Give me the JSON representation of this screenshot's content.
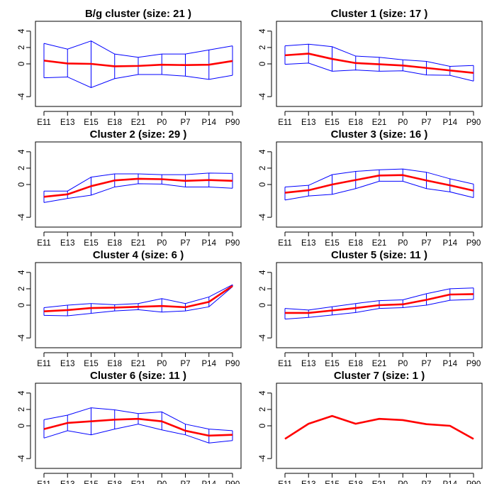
{
  "x_tick_labels": [
    "E11",
    "E13",
    "E15",
    "E18",
    "E21",
    "P0",
    "P7",
    "P14",
    "P90"
  ],
  "y_tick_labels": [
    "4",
    "2",
    "0",
    "-4"
  ],
  "colors": {
    "mean_line": "#ff0000",
    "envelope": "#0000ff",
    "axis": "#000000"
  },
  "chart_data": [
    {
      "type": "line",
      "title": "B/g cluster  (size:  21 )",
      "ylim": [
        -5.2,
        5.2
      ],
      "mean": [
        0.4,
        0.05,
        0.0,
        -0.3,
        -0.25,
        -0.1,
        -0.15,
        -0.1,
        0.35
      ],
      "upper": [
        2.5,
        1.8,
        2.8,
        1.2,
        0.8,
        1.2,
        1.2,
        1.7,
        2.2
      ],
      "lower": [
        -1.7,
        -1.6,
        -2.9,
        -1.8,
        -1.3,
        -1.3,
        -1.5,
        -1.9,
        -1.4
      ]
    },
    {
      "type": "line",
      "title": "Cluster  1 (size:  17 )",
      "ylim": [
        -5.2,
        5.2
      ],
      "mean": [
        1.05,
        1.25,
        0.6,
        0.1,
        -0.05,
        -0.2,
        -0.5,
        -0.8,
        -1.1
      ],
      "upper": [
        2.2,
        2.4,
        2.1,
        0.95,
        0.8,
        0.5,
        0.3,
        -0.3,
        -0.2
      ],
      "lower": [
        -0.05,
        0.1,
        -0.9,
        -0.75,
        -0.9,
        -0.85,
        -1.35,
        -1.4,
        -2.1
      ]
    },
    {
      "type": "line",
      "title": "Cluster  2 (size:  29 )",
      "ylim": [
        -5.2,
        5.2
      ],
      "mean": [
        -1.5,
        -1.2,
        -0.2,
        0.5,
        0.7,
        0.65,
        0.45,
        0.55,
        0.45
      ],
      "upper": [
        -0.8,
        -0.8,
        0.9,
        1.3,
        1.3,
        1.2,
        1.2,
        1.4,
        1.35
      ],
      "lower": [
        -2.2,
        -1.7,
        -1.3,
        -0.3,
        0.1,
        0.05,
        -0.3,
        -0.3,
        -0.45
      ]
    },
    {
      "type": "line",
      "title": "Cluster  3 (size:  16 )",
      "ylim": [
        -5.2,
        5.2
      ],
      "mean": [
        -1.0,
        -0.7,
        0.0,
        0.55,
        1.1,
        1.15,
        0.5,
        -0.1,
        -0.75
      ],
      "upper": [
        -0.3,
        -0.1,
        1.2,
        1.6,
        1.8,
        1.9,
        1.5,
        0.7,
        0.05
      ],
      "lower": [
        -1.9,
        -1.4,
        -1.2,
        -0.5,
        0.4,
        0.4,
        -0.5,
        -0.9,
        -1.6
      ]
    },
    {
      "type": "line",
      "title": "Cluster  4 (size:  6 )",
      "ylim": [
        -5.2,
        5.2
      ],
      "mean": [
        -0.75,
        -0.6,
        -0.35,
        -0.3,
        -0.2,
        -0.1,
        -0.25,
        0.4,
        2.35
      ],
      "upper": [
        -0.3,
        0.0,
        0.2,
        0.05,
        0.2,
        0.8,
        0.2,
        1.0,
        2.5
      ],
      "lower": [
        -1.25,
        -1.3,
        -1.0,
        -0.7,
        -0.55,
        -0.85,
        -0.7,
        -0.2,
        2.25
      ]
    },
    {
      "type": "line",
      "title": "Cluster  5 (size:  11 )",
      "ylim": [
        -5.2,
        5.2
      ],
      "mean": [
        -0.95,
        -0.95,
        -0.65,
        -0.35,
        0.0,
        0.1,
        0.65,
        1.3,
        1.35
      ],
      "upper": [
        -0.4,
        -0.6,
        -0.2,
        0.2,
        0.55,
        0.65,
        1.4,
        2.0,
        2.1
      ],
      "lower": [
        -1.7,
        -1.5,
        -1.2,
        -0.9,
        -0.4,
        -0.3,
        0.0,
        0.6,
        0.7
      ]
    },
    {
      "type": "line",
      "title": "Cluster  6 (size:  11 )",
      "ylim": [
        -5.2,
        5.2
      ],
      "mean": [
        -0.4,
        0.35,
        0.55,
        0.75,
        0.85,
        0.55,
        -0.6,
        -1.2,
        -1.1
      ],
      "upper": [
        0.75,
        1.3,
        2.2,
        1.95,
        1.5,
        1.7,
        0.2,
        -0.4,
        -0.6
      ],
      "lower": [
        -1.5,
        -0.6,
        -1.1,
        -0.4,
        0.2,
        -0.5,
        -1.1,
        -2.1,
        -1.8
      ]
    },
    {
      "type": "line",
      "title": "Cluster  7 (size:  1 )",
      "ylim": [
        -5.2,
        5.2
      ],
      "mean": [
        -1.6,
        0.25,
        1.2,
        0.25,
        0.85,
        0.7,
        0.2,
        0.0,
        -1.6
      ]
    }
  ]
}
